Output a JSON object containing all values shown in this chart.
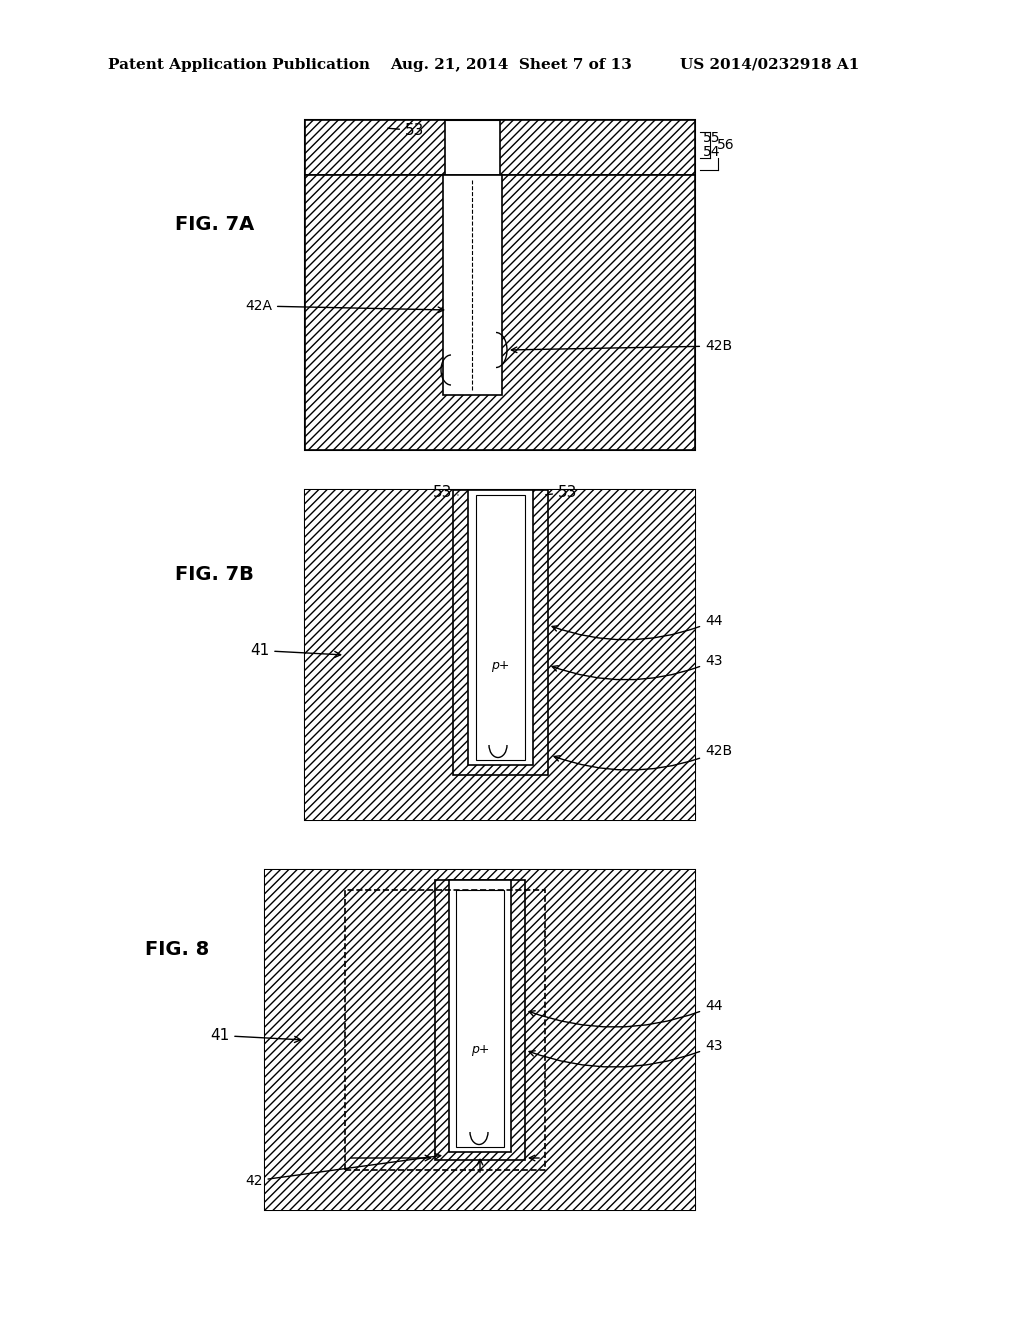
{
  "bg_color": "#ffffff",
  "header_text1": "Patent Application Publication",
  "header_text2": "Aug. 21, 2014  Sheet 7 of 13",
  "header_text3": "US 2014/0232918 A1",
  "fig7a_label": "FIG. 7A",
  "fig7b_label": "FIG. 7B",
  "fig8_label": "FIG. 8",
  "hatch_pattern": "////",
  "line_color": "#000000",
  "hatch_color": "#000000",
  "box_color": "#ffffff"
}
